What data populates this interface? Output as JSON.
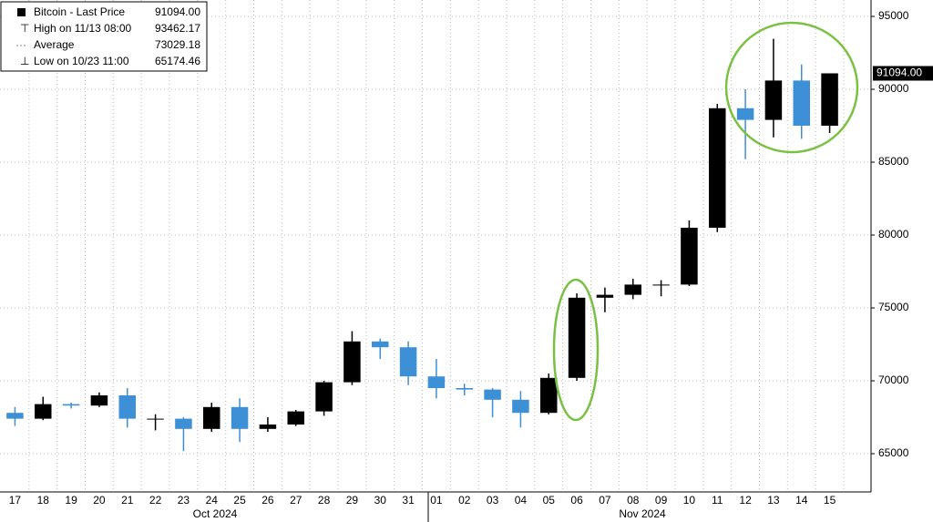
{
  "chart_data": {
    "type": "candlestick",
    "series_name": "Bitcoin - Last Price",
    "categories": [
      "17",
      "18",
      "19",
      "20",
      "21",
      "22",
      "23",
      "24",
      "25",
      "26",
      "27",
      "28",
      "29",
      "30",
      "31",
      "01",
      "02",
      "03",
      "04",
      "05",
      "06",
      "07",
      "08",
      "09",
      "10",
      "11",
      "12",
      "13",
      "14",
      "15"
    ],
    "months": [
      "Oct 2024",
      "Nov 2024"
    ],
    "open": [
      67800,
      67400,
      68400,
      68300,
      69000,
      67400,
      67400,
      66700,
      68200,
      66700,
      67000,
      67900,
      69900,
      72700,
      72300,
      70300,
      69500,
      69400,
      68700,
      67800,
      70200,
      75700,
      75900,
      76600,
      76600,
      80500,
      88700,
      87900,
      90600,
      87500
    ],
    "high": [
      68200,
      68900,
      68500,
      69200,
      69500,
      67700,
      67500,
      68500,
      68800,
      67500,
      68000,
      70000,
      73400,
      72900,
      72700,
      71500,
      69800,
      69500,
      69300,
      70500,
      76000,
      76400,
      77000,
      76900,
      81000,
      89000,
      90000,
      93462.17,
      91700,
      91094
    ],
    "low": [
      66900,
      67300,
      68100,
      68200,
      66800,
      66600,
      65174.46,
      66500,
      65800,
      66500,
      66900,
      67600,
      69700,
      71500,
      69700,
      68800,
      69000,
      67500,
      66800,
      67700,
      70000,
      74700,
      75600,
      75800,
      76500,
      80200,
      85200,
      86700,
      86600,
      87000
    ],
    "close": [
      67400,
      68400,
      68300,
      69000,
      67400,
      67400,
      66700,
      68200,
      66700,
      67000,
      67900,
      69900,
      72700,
      72300,
      70300,
      69500,
      69400,
      68700,
      67800,
      70200,
      75700,
      75900,
      76600,
      76600,
      80500,
      88700,
      87900,
      90600,
      87500,
      91094
    ],
    "up_color": "#000000",
    "down_color": "#3d8fd6",
    "ylim": [
      62375,
      96125
    ],
    "yticks": [
      65000,
      70000,
      75000,
      80000,
      85000,
      90000,
      95000
    ],
    "grid": true,
    "legend": [
      {
        "label": "Bitcoin - Last Price",
        "value": "91094.00"
      },
      {
        "label": "High on 11/13 08:00",
        "value": "93462.17"
      },
      {
        "label": "Average",
        "value": "73029.18"
      },
      {
        "label": "Low on 10/23 11:00",
        "value": "65174.46"
      }
    ]
  }
}
